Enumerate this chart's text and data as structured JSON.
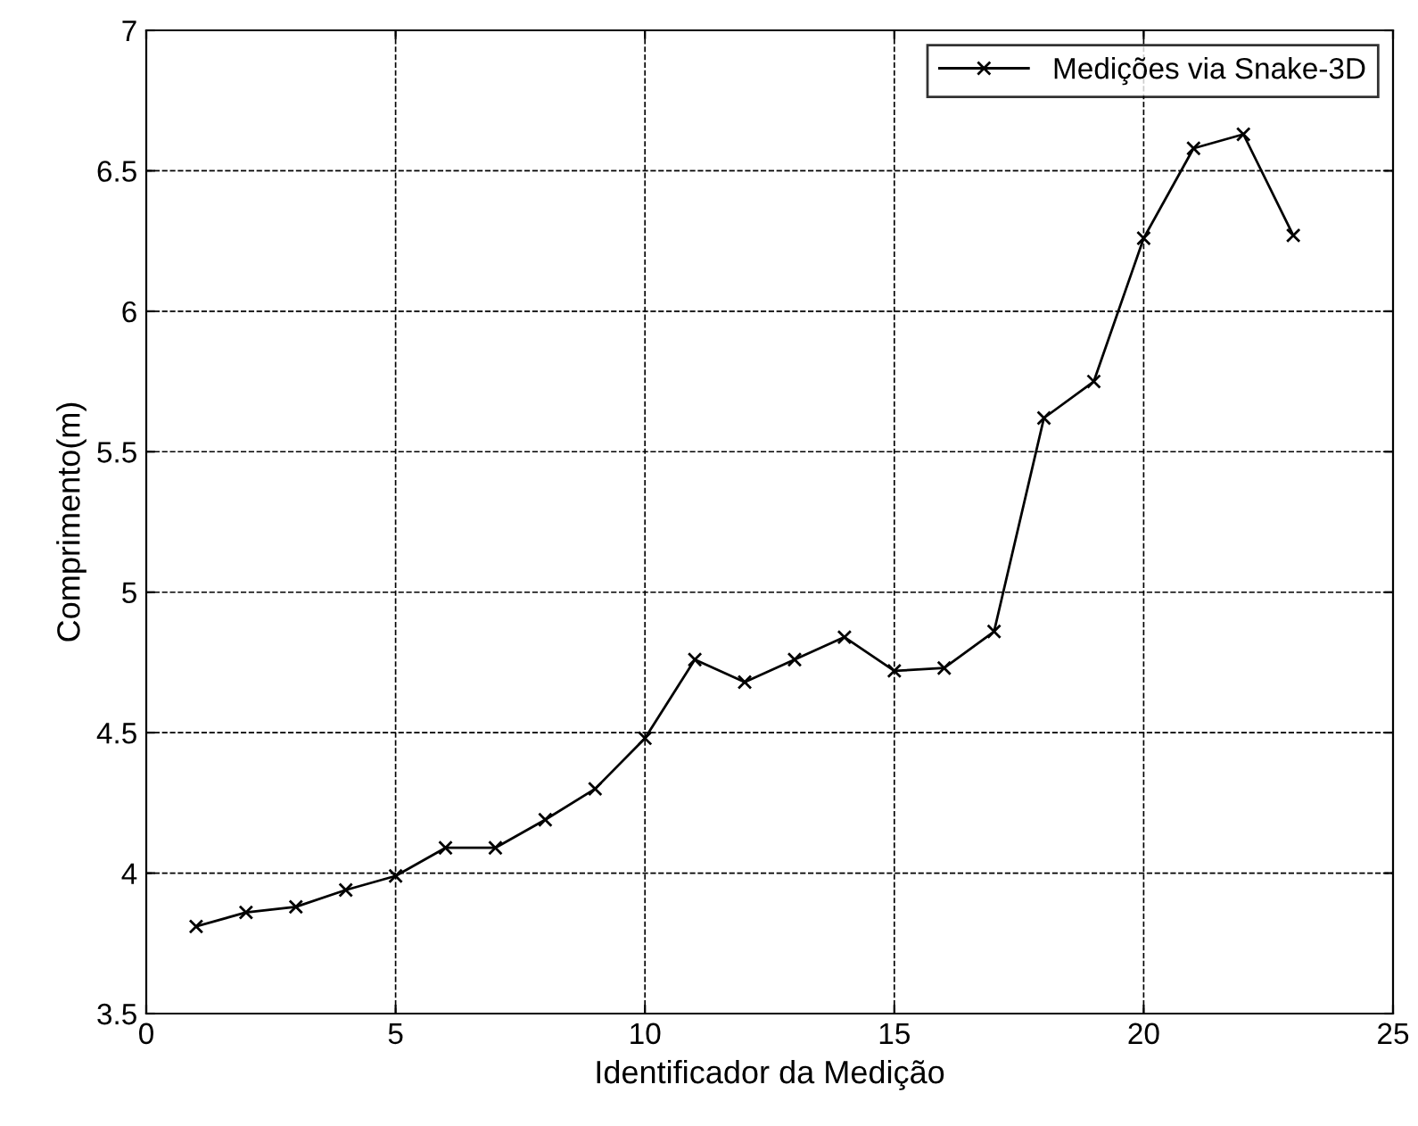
{
  "chart_data": {
    "type": "line",
    "xlabel": "Identificador da Medição",
    "ylabel": "Comprimento(m)",
    "x": [
      1,
      2,
      3,
      4,
      5,
      6,
      7,
      8,
      9,
      10,
      11,
      12,
      13,
      14,
      15,
      16,
      17,
      18,
      19,
      20,
      21,
      22,
      23
    ],
    "series": [
      {
        "name": "Medições via Snake-3D",
        "color": "#000000",
        "values": [
          3.81,
          3.86,
          3.88,
          3.94,
          3.99,
          4.09,
          4.09,
          4.19,
          4.3,
          4.48,
          4.76,
          4.68,
          4.76,
          4.84,
          4.72,
          4.73,
          4.86,
          5.62,
          5.75,
          6.26,
          6.58,
          6.63,
          6.27
        ]
      }
    ],
    "xlim": [
      0,
      25
    ],
    "xticks": [
      0,
      5,
      10,
      15,
      20,
      25
    ],
    "ylim": [
      3.5,
      7
    ],
    "yticks": [
      3.5,
      4,
      4.5,
      5,
      5.5,
      6,
      6.5,
      7
    ],
    "grid": true,
    "legend": "top right",
    "marker": "cross",
    "line_style": "solid"
  }
}
